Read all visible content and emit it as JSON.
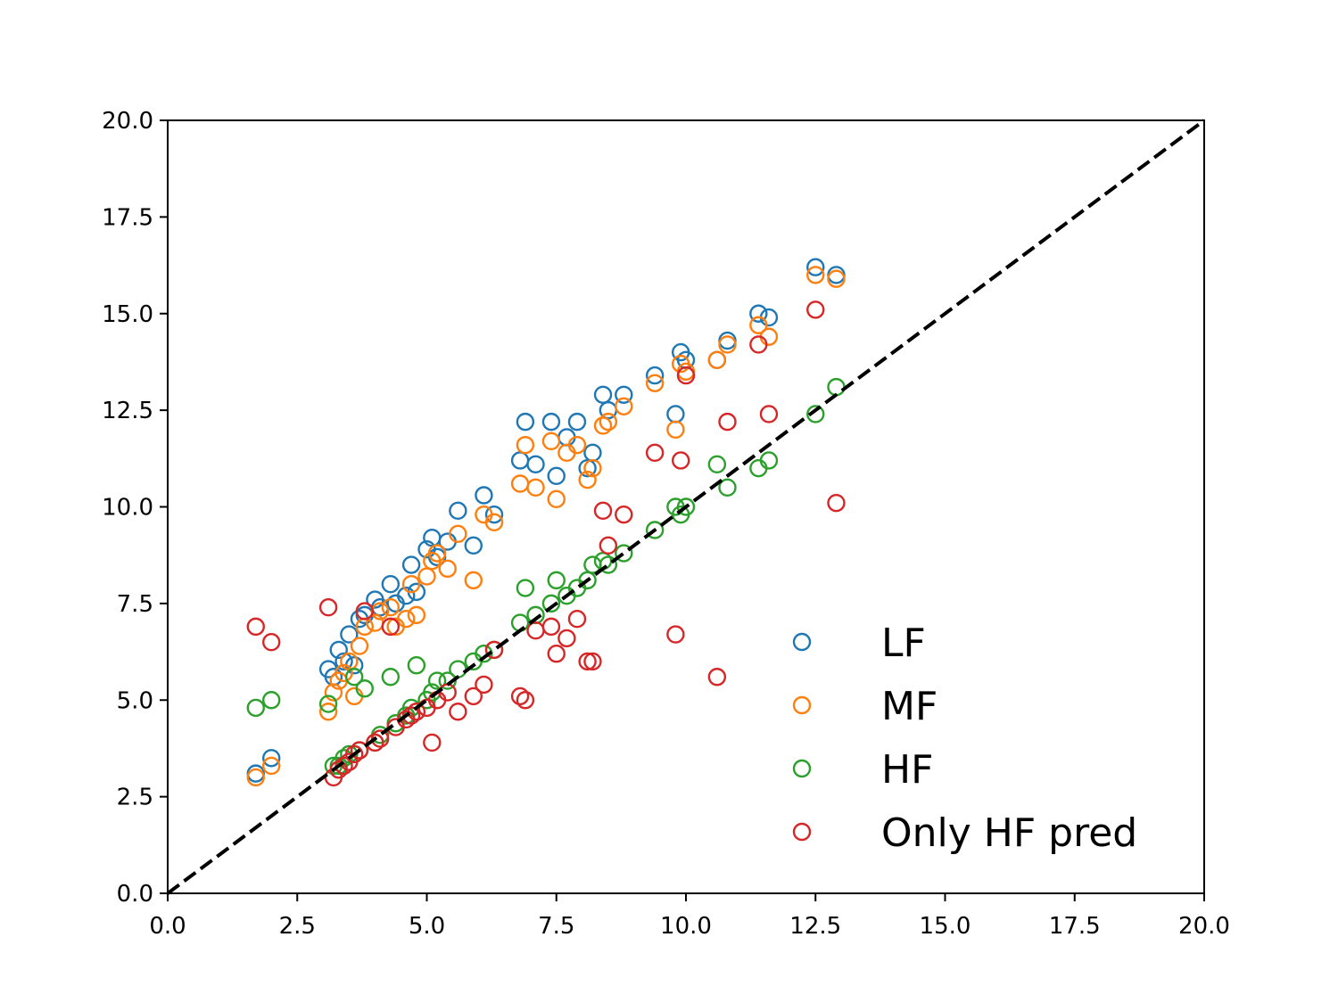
{
  "chart_data": {
    "type": "scatter",
    "title": "",
    "xlabel": "",
    "ylabel": "",
    "xlim": [
      0,
      20
    ],
    "ylim": [
      0,
      20
    ],
    "xticks": [
      "0.0",
      "2.5",
      "5.0",
      "7.5",
      "10.0",
      "12.5",
      "15.0",
      "17.5",
      "20.0"
    ],
    "yticks": [
      "0.0",
      "2.5",
      "5.0",
      "7.5",
      "10.0",
      "12.5",
      "15.0",
      "17.5",
      "20.0"
    ],
    "grid": false,
    "legend_position": "lower-right",
    "reference_line": {
      "type": "y=x",
      "style": "dashed",
      "color": "#000000"
    },
    "series": [
      {
        "name": "LF",
        "color": "#1f77b4",
        "marker": "open-circle",
        "x": [
          1.7,
          2.0,
          3.1,
          3.2,
          3.3,
          3.4,
          3.5,
          3.6,
          3.7,
          3.8,
          4.0,
          4.1,
          4.3,
          4.4,
          4.6,
          4.7,
          4.8,
          5.0,
          5.1,
          5.2,
          5.4,
          5.6,
          5.9,
          6.1,
          6.3,
          6.8,
          6.9,
          7.1,
          7.4,
          7.5,
          7.7,
          7.9,
          8.1,
          8.2,
          8.4,
          8.5,
          8.8,
          9.4,
          9.8,
          9.9,
          10.0,
          10.6,
          10.8,
          11.4,
          11.6,
          12.5,
          12.9
        ],
        "y": [
          3.1,
          3.5,
          5.8,
          5.6,
          6.3,
          6.0,
          6.7,
          5.9,
          7.1,
          7.2,
          7.6,
          7.4,
          8.0,
          7.5,
          7.7,
          8.5,
          7.8,
          8.9,
          9.2,
          8.7,
          9.1,
          9.9,
          9.0,
          10.3,
          9.8,
          11.2,
          12.2,
          11.1,
          12.2,
          10.8,
          11.8,
          12.2,
          11.0,
          11.4,
          12.9,
          12.5,
          12.9,
          13.4,
          12.4,
          14.0,
          13.8,
          13.8,
          14.3,
          15.0,
          14.9,
          16.2,
          16.0
        ]
      },
      {
        "name": "MF",
        "color": "#ff7f0e",
        "marker": "open-circle",
        "x": [
          1.7,
          2.0,
          3.1,
          3.2,
          3.3,
          3.4,
          3.5,
          3.6,
          3.7,
          3.8,
          4.0,
          4.1,
          4.3,
          4.4,
          4.6,
          4.7,
          4.8,
          5.0,
          5.1,
          5.2,
          5.4,
          5.6,
          5.9,
          6.1,
          6.3,
          6.8,
          6.9,
          7.1,
          7.4,
          7.5,
          7.7,
          7.9,
          8.1,
          8.2,
          8.4,
          8.5,
          8.8,
          9.4,
          9.8,
          9.9,
          10.0,
          10.6,
          10.8,
          11.4,
          11.6,
          12.5,
          12.9
        ],
        "y": [
          3.0,
          3.3,
          4.7,
          5.2,
          5.5,
          5.7,
          6.0,
          5.1,
          6.4,
          6.9,
          7.0,
          7.3,
          7.4,
          6.9,
          7.1,
          8.0,
          7.2,
          8.2,
          8.6,
          8.8,
          8.4,
          9.3,
          8.1,
          9.8,
          9.6,
          10.6,
          11.6,
          10.5,
          11.7,
          10.2,
          11.4,
          11.6,
          10.7,
          11.0,
          12.1,
          12.2,
          12.6,
          13.2,
          12.0,
          13.7,
          13.5,
          13.8,
          14.2,
          14.7,
          14.4,
          16.0,
          15.9
        ]
      },
      {
        "name": "HF",
        "color": "#2ca02c",
        "marker": "open-circle",
        "x": [
          1.7,
          2.0,
          3.1,
          3.2,
          3.3,
          3.4,
          3.5,
          3.6,
          3.7,
          3.8,
          4.0,
          4.1,
          4.3,
          4.4,
          4.6,
          4.7,
          4.8,
          5.0,
          5.1,
          5.2,
          5.4,
          5.6,
          5.9,
          6.1,
          6.3,
          6.8,
          6.9,
          7.1,
          7.4,
          7.5,
          7.7,
          7.9,
          8.1,
          8.2,
          8.4,
          8.5,
          8.8,
          9.4,
          9.8,
          9.9,
          10.0,
          10.6,
          10.8,
          11.4,
          11.6,
          12.5,
          12.9
        ],
        "y": [
          4.8,
          5.0,
          4.9,
          3.3,
          3.3,
          3.5,
          3.6,
          5.6,
          3.7,
          5.3,
          3.9,
          4.1,
          5.6,
          4.4,
          4.6,
          4.8,
          5.9,
          5.0,
          5.2,
          5.5,
          5.5,
          5.8,
          6.0,
          6.2,
          6.3,
          7.0,
          7.9,
          7.2,
          7.5,
          8.1,
          7.7,
          7.9,
          8.1,
          8.5,
          8.6,
          8.5,
          8.8,
          9.4,
          10.0,
          9.8,
          10.0,
          11.1,
          10.5,
          11.0,
          11.2,
          12.4,
          13.1
        ]
      },
      {
        "name": "Only HF pred",
        "color": "#d62728",
        "marker": "open-circle",
        "x": [
          1.7,
          2.0,
          3.1,
          3.2,
          3.3,
          3.4,
          3.5,
          3.6,
          3.7,
          3.8,
          4.0,
          4.1,
          4.3,
          4.4,
          4.6,
          4.7,
          4.8,
          5.0,
          5.1,
          5.2,
          5.4,
          5.6,
          5.9,
          6.1,
          6.3,
          6.8,
          6.9,
          7.1,
          7.4,
          7.5,
          7.7,
          7.9,
          8.1,
          8.2,
          8.4,
          8.5,
          8.8,
          9.4,
          9.8,
          9.9,
          10.0,
          10.6,
          10.8,
          11.4,
          11.6,
          12.5,
          12.9
        ],
        "y": [
          6.9,
          6.5,
          7.4,
          3.0,
          3.2,
          3.3,
          3.4,
          3.6,
          3.7,
          7.3,
          3.9,
          4.0,
          6.9,
          4.3,
          4.5,
          4.6,
          4.7,
          4.8,
          3.9,
          5.0,
          5.2,
          4.7,
          5.1,
          5.4,
          6.3,
          5.1,
          5.0,
          6.8,
          6.9,
          6.2,
          6.6,
          7.1,
          6.0,
          6.0,
          9.9,
          9.0,
          9.8,
          11.4,
          6.7,
          11.2,
          13.4,
          5.6,
          12.2,
          14.2,
          12.4,
          15.1,
          10.1
        ]
      }
    ]
  }
}
